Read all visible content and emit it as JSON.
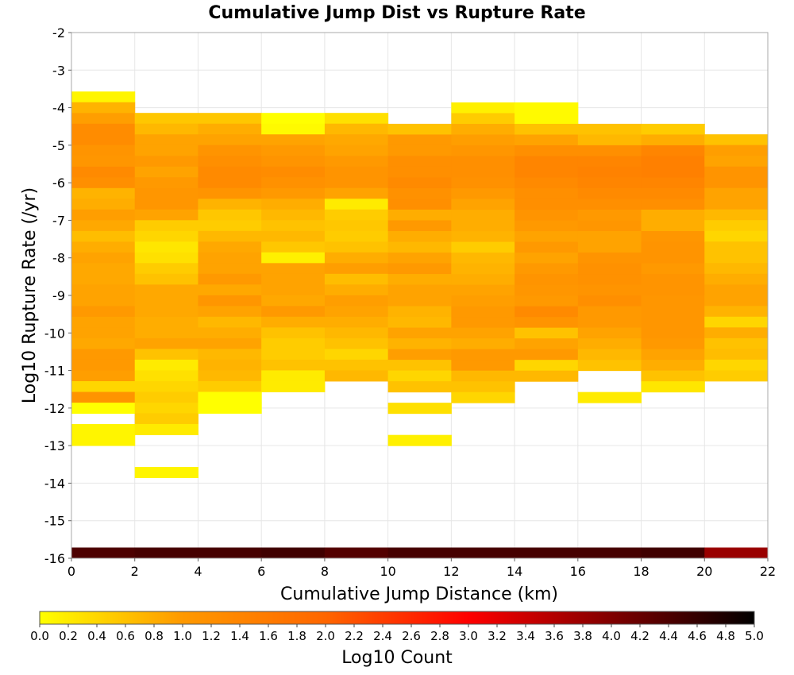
{
  "chart_data": {
    "type": "heatmap",
    "title": "Cumulative Jump Dist vs Rupture Rate",
    "xlabel": "Cumulative Jump Distance (km)",
    "ylabel": "Log10 Rupture Rate (/yr)",
    "xlim": [
      0,
      22
    ],
    "ylim": [
      -16,
      -2
    ],
    "x_bin_width": 2,
    "y_bin_width": 0.2857,
    "x_ticks": [
      "0",
      "2",
      "4",
      "6",
      "8",
      "10",
      "12",
      "14",
      "16",
      "18",
      "20",
      "22"
    ],
    "y_ticks": [
      "-2",
      "-3",
      "-4",
      "-5",
      "-6",
      "-7",
      "-8",
      "-9",
      "-10",
      "-11",
      "-12",
      "-13",
      "-14",
      "-15",
      "-16"
    ],
    "grid": true,
    "colorbar": {
      "label": "Log10 Count",
      "range": [
        0,
        5
      ],
      "position": "bottom",
      "ticks": [
        "0.0",
        "0.2",
        "0.4",
        "0.6",
        "0.8",
        "1.0",
        "1.2",
        "1.4",
        "1.6",
        "1.8",
        "2.0",
        "2.2",
        "2.4",
        "2.6",
        "2.8",
        "3.0",
        "3.2",
        "3.4",
        "3.6",
        "3.8",
        "4.0",
        "4.2",
        "4.4",
        "4.6",
        "4.8",
        "5.0"
      ],
      "colors": [
        "#ffff00",
        "#ff9900",
        "#ff6600",
        "#ff0000",
        "#800000",
        "#000000"
      ]
    },
    "columns": [
      {
        "x": 0,
        "start_y": -3.57,
        "values": [
          0.1,
          0.75,
          0.95,
          1.25,
          1.25,
          1.1,
          1.05,
          1.3,
          1.2,
          0.75,
          0.8,
          0.95,
          0.85,
          0.65,
          0.8,
          0.9,
          0.85,
          0.85,
          0.9,
          0.9,
          1.0,
          0.9,
          0.9,
          0.85,
          1.0,
          1.0,
          0.95,
          0.4,
          1.1,
          0.0,
          null,
          0.1,
          0.1
        ]
      },
      {
        "x": 2,
        "start_y": -4.14,
        "values": [
          0.55,
          0.7,
          0.9,
          0.9,
          1.0,
          0.9,
          1.0,
          1.05,
          1.05,
          0.9,
          0.5,
          0.4,
          0.25,
          0.3,
          0.5,
          0.6,
          0.85,
          0.85,
          0.85,
          0.8,
          0.8,
          0.9,
          0.6,
          0.2,
          0.3,
          0.4,
          0.5,
          0.4,
          0.5,
          0.2,
          null,
          null,
          null,
          0.1
        ]
      },
      {
        "x": 4,
        "start_y": -4.14,
        "values": [
          0.55,
          0.8,
          0.9,
          1.1,
          1.2,
          1.3,
          1.3,
          1.1,
          0.75,
          0.55,
          0.5,
          0.7,
          0.85,
          0.9,
          0.9,
          1.0,
          0.85,
          1.05,
          0.9,
          0.7,
          0.8,
          0.9,
          0.7,
          0.75,
          0.7,
          0.5,
          0.0,
          0.0
        ]
      },
      {
        "x": 6,
        "start_y": -4.14,
        "values": [
          0.0,
          0.05,
          0.9,
          1.0,
          1.1,
          1.25,
          1.15,
          1.0,
          0.8,
          0.7,
          0.6,
          0.7,
          0.55,
          0.15,
          0.9,
          0.9,
          0.9,
          0.85,
          1.0,
          0.8,
          0.6,
          0.5,
          0.5,
          0.6,
          0.2,
          0.2
        ]
      },
      {
        "x": 8,
        "start_y": -4.14,
        "values": [
          0.3,
          0.7,
          0.85,
          0.9,
          1.0,
          1.1,
          1.1,
          0.9,
          0.2,
          0.5,
          0.55,
          0.5,
          0.6,
          0.8,
          0.95,
          0.65,
          0.8,
          0.95,
          0.9,
          0.8,
          0.7,
          0.6,
          0.4,
          0.6,
          0.7
        ]
      },
      {
        "x": 10,
        "start_y": -4.43,
        "values": [
          0.6,
          1.0,
          1.0,
          1.2,
          1.2,
          1.3,
          1.15,
          1.2,
          0.8,
          1.0,
          0.8,
          0.7,
          0.9,
          1.0,
          0.8,
          0.9,
          0.9,
          0.75,
          0.7,
          0.9,
          0.75,
          0.95,
          0.6,
          0.4,
          0.6,
          null,
          0.3,
          null,
          null,
          0.15
        ]
      },
      {
        "x": 12,
        "start_y": -3.86,
        "values": [
          0.15,
          0.5,
          0.8,
          0.95,
          1.05,
          1.2,
          1.2,
          1.15,
          1.0,
          0.9,
          0.8,
          0.8,
          0.75,
          0.5,
          0.7,
          0.75,
          0.8,
          0.9,
          0.95,
          1.0,
          1.0,
          0.9,
          0.8,
          1.0,
          1.0,
          0.7,
          0.6,
          0.4
        ]
      },
      {
        "x": 14,
        "start_y": -3.86,
        "values": [
          0.05,
          0.05,
          0.6,
          0.9,
          1.2,
          1.4,
          1.4,
          1.3,
          1.2,
          1.2,
          1.1,
          1.0,
          0.9,
          1.0,
          0.9,
          1.0,
          1.1,
          1.05,
          1.0,
          1.3,
          1.1,
          0.6,
          0.9,
          1.0,
          0.4,
          0.7
        ]
      },
      {
        "x": 16,
        "start_y": -4.43,
        "values": [
          0.6,
          0.7,
          1.2,
          1.4,
          1.45,
          1.4,
          1.3,
          1.2,
          1.0,
          1.05,
          0.9,
          0.9,
          1.1,
          1.15,
          1.15,
          1.1,
          1.2,
          1.0,
          1.0,
          0.9,
          0.8,
          0.7,
          0.6,
          null,
          null,
          0.2
        ]
      },
      {
        "x": 18,
        "start_y": -4.43,
        "values": [
          0.5,
          0.8,
          1.4,
          1.5,
          1.5,
          1.4,
          1.3,
          1.2,
          0.8,
          0.8,
          1.05,
          1.1,
          1.1,
          1.0,
          1.1,
          1.1,
          1.05,
          1.05,
          1.05,
          1.05,
          1.0,
          0.9,
          0.8,
          0.6,
          0.25
        ]
      },
      {
        "x": 20,
        "start_y": -4.71,
        "values": [
          0.6,
          0.95,
          0.9,
          1.1,
          1.1,
          0.9,
          0.9,
          0.7,
          0.5,
          0.4,
          0.6,
          0.6,
          0.7,
          0.8,
          0.9,
          0.9,
          0.75,
          0.4,
          0.8,
          0.6,
          0.65,
          0.4,
          0.5
        ]
      }
    ],
    "bottom_row": {
      "y": -16.0,
      "values": [
        4.4,
        4.45,
        4.45,
        4.5,
        4.35,
        4.45,
        4.45,
        4.45,
        4.45,
        4.5,
        3.8
      ]
    }
  }
}
